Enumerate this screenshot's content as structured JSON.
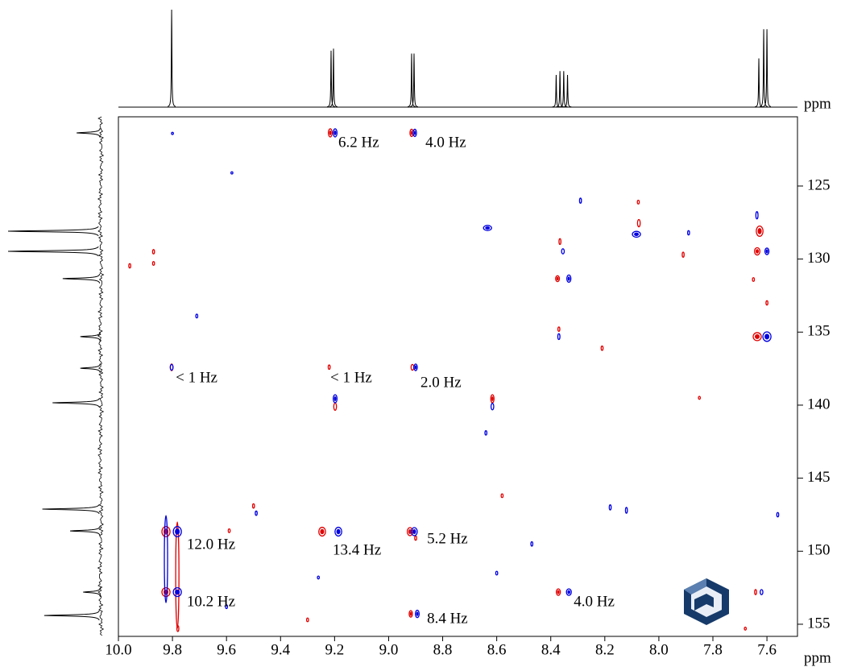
{
  "chart_data": {
    "type": "nmr2d",
    "x_unit": "ppm",
    "y_unit": "ppm",
    "xlim": [
      10.0,
      7.487
    ],
    "ylim": [
      120.26,
      155.83
    ],
    "xticks": [
      {
        "value": 10.0,
        "label": "10.0"
      },
      9.8,
      9.6,
      9.4,
      9.2,
      {
        "value": 9.0,
        "label": "9.0"
      },
      8.8,
      8.6,
      8.4,
      8.2,
      {
        "value": 8.0,
        "label": "8.0"
      },
      7.8,
      7.6
    ],
    "yticks": [
      125,
      130,
      135,
      140,
      145,
      150,
      155
    ],
    "series": [
      {
        "color": "#e00000",
        "x": [
          9.216,
          8.915,
          8.074,
          7.627,
          8.366,
          8.375,
          7.636,
          7.636,
          9.803,
          8.912,
          9.198,
          8.616,
          9.824,
          9.824,
          9.246,
          8.921,
          8.372,
          8.918,
          7.642,
          9.782,
          9.958,
          9.87,
          9.87,
          8.21,
          8.076,
          7.91,
          9.5,
          9.59,
          9.3,
          8.9,
          8.58,
          7.65,
          7.6,
          7.85,
          7.68,
          9.78,
          9.22,
          8.37
        ],
        "y": [
          121.36,
          121.36,
          127.54,
          128.09,
          128.8,
          131.34,
          129.47,
          135.31,
          137.41,
          137.41,
          140.1,
          139.56,
          148.66,
          152.8,
          148.66,
          148.66,
          152.8,
          154.29,
          152.8,
          151.64,
          130.46,
          129.5,
          130.3,
          136.1,
          126.1,
          129.7,
          146.9,
          148.6,
          154.7,
          149.1,
          146.2,
          131.4,
          133.0,
          139.5,
          155.3,
          155.3,
          137.4,
          134.8
        ],
        "w": [
          0.014,
          0.012,
          0.01,
          0.025,
          0.006,
          0.014,
          0.02,
          0.03,
          0.01,
          0.01,
          0.01,
          0.012,
          0.03,
          0.03,
          0.025,
          0.02,
          0.015,
          0.012,
          0.006,
          0.012,
          0.005,
          0.005,
          0.005,
          0.005,
          0.005,
          0.005,
          0.006,
          0.005,
          0.005,
          0.005,
          0.005,
          0.005,
          0.005,
          0.005,
          0.005,
          0.006,
          0.006,
          0.005
        ],
        "h": [
          0.55,
          0.5,
          0.5,
          0.7,
          0.4,
          0.4,
          0.5,
          0.55,
          0.45,
          0.4,
          0.5,
          0.55,
          0.7,
          0.6,
          0.6,
          0.55,
          0.45,
          0.45,
          0.35,
          7.28,
          0.3,
          0.3,
          0.25,
          0.3,
          0.25,
          0.35,
          0.3,
          0.25,
          0.25,
          0.3,
          0.25,
          0.25,
          0.3,
          0.2,
          0.2,
          0.4,
          0.3,
          0.3
        ]
      },
      {
        "color": "#0000e0",
        "x": [
          9.198,
          8.903,
          8.634,
          8.083,
          7.637,
          8.355,
          8.333,
          7.6,
          7.6,
          8.37,
          9.803,
          8.9,
          9.198,
          8.616,
          9.782,
          9.782,
          9.186,
          8.905,
          8.333,
          8.894,
          7.62,
          9.824,
          9.8,
          9.58,
          9.71,
          8.29,
          7.89,
          8.64,
          8.6,
          8.47,
          8.18,
          8.12,
          9.49,
          9.26,
          9.6,
          7.56
        ],
        "y": [
          121.36,
          121.36,
          127.87,
          128.3,
          127.0,
          129.47,
          131.34,
          129.47,
          135.31,
          135.31,
          137.41,
          137.41,
          139.56,
          140.1,
          148.66,
          152.8,
          148.66,
          148.66,
          152.8,
          154.29,
          152.8,
          150.54,
          121.4,
          124.1,
          133.9,
          126.0,
          128.2,
          141.9,
          151.5,
          149.5,
          147.0,
          147.2,
          147.4,
          151.8,
          153.8,
          147.5
        ],
        "w": [
          0.014,
          0.012,
          0.03,
          0.03,
          0.008,
          0.01,
          0.015,
          0.015,
          0.03,
          0.008,
          0.01,
          0.012,
          0.014,
          0.01,
          0.03,
          0.03,
          0.025,
          0.022,
          0.018,
          0.014,
          0.01,
          0.012,
          0.005,
          0.004,
          0.005,
          0.005,
          0.006,
          0.005,
          0.005,
          0.005,
          0.005,
          0.005,
          0.005,
          0.005,
          0.005,
          0.005
        ],
        "h": [
          0.55,
          0.5,
          0.35,
          0.4,
          0.5,
          0.35,
          0.5,
          0.45,
          0.65,
          0.4,
          0.4,
          0.45,
          0.55,
          0.45,
          0.7,
          0.6,
          0.6,
          0.55,
          0.45,
          0.5,
          0.35,
          5.96,
          0.15,
          0.15,
          0.25,
          0.35,
          0.3,
          0.3,
          0.25,
          0.3,
          0.35,
          0.4,
          0.3,
          0.2,
          0.25,
          0.3
        ]
      }
    ],
    "projection_1h": {
      "x": [
        9.803,
        9.213,
        9.204,
        8.915,
        8.906,
        8.38,
        8.366,
        8.352,
        8.338,
        7.63,
        7.612,
        7.6
      ],
      "heights": [
        1.0,
        0.58,
        0.6,
        0.55,
        0.55,
        0.33,
        0.37,
        0.37,
        0.33,
        0.5,
        0.8,
        0.8
      ]
    },
    "projection_13c": {
      "y": [
        121.36,
        128.09,
        129.47,
        131.34,
        135.31,
        137.47,
        139.84,
        147.12,
        148.61,
        152.8,
        154.4
      ],
      "heights": [
        0.26,
        1.0,
        1.0,
        0.41,
        0.22,
        0.22,
        0.52,
        0.63,
        0.33,
        0.19,
        0.61
      ]
    },
    "annotations": [
      {
        "text": "6.2 Hz",
        "x": 9.186,
        "y": 122.08
      },
      {
        "text": "4.0 Hz",
        "x": 8.864,
        "y": 122.08
      },
      {
        "text": "< 1 Hz",
        "x": 9.788,
        "y": 138.18
      },
      {
        "text": "< 1 Hz",
        "x": 9.216,
        "y": 138.18
      },
      {
        "text": "2.0 Hz",
        "x": 8.882,
        "y": 138.51
      },
      {
        "text": "12.0 Hz",
        "x": 9.747,
        "y": 149.6
      },
      {
        "text": "13.4 Hz",
        "x": 9.207,
        "y": 149.99
      },
      {
        "text": "5.2 Hz",
        "x": 8.858,
        "y": 149.21
      },
      {
        "text": "10.2 Hz",
        "x": 9.747,
        "y": 153.52
      },
      {
        "text": "4.0 Hz",
        "x": 8.315,
        "y": 153.52
      },
      {
        "text": "8.4 Hz",
        "x": 8.858,
        "y": 154.68
      }
    ]
  }
}
